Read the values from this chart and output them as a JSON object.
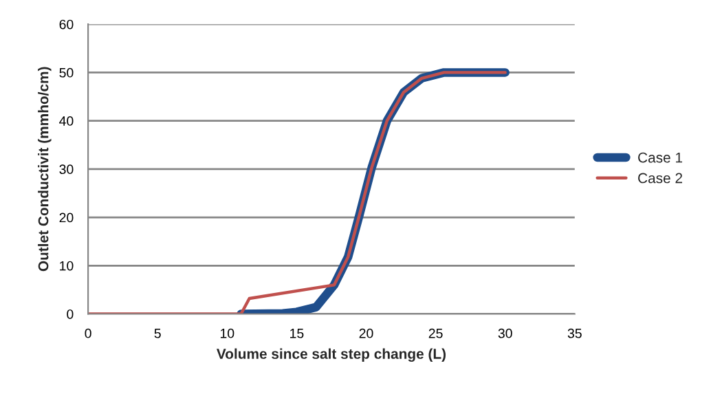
{
  "chart_data": {
    "type": "line",
    "xlabel": "Volume since salt step change (L)",
    "ylabel": "Outlet Conductivit (mmho/cm)",
    "xlim": [
      0,
      35
    ],
    "xticks": [
      0,
      5,
      10,
      15,
      20,
      25,
      30,
      35
    ],
    "ylim": [
      0,
      60
    ],
    "yticks": [
      0,
      10,
      20,
      30,
      40,
      50,
      60
    ],
    "grid": "y",
    "legend": "right",
    "marker": "none",
    "line_style": "solid",
    "series": [
      {
        "name": "Case 1",
        "color": "#1f4e8c",
        "x": [
          11.0,
          14.0,
          15.0,
          16.4,
          17.7,
          18.7,
          19.5,
          20.4,
          21.5,
          22.7,
          24.0,
          25.6,
          30.0
        ],
        "values": [
          0,
          0.1,
          0.4,
          1.4,
          6.0,
          11.8,
          20.3,
          30.3,
          40.0,
          45.9,
          48.8,
          50.0,
          50.0
        ]
      },
      {
        "name": "Case 2",
        "color": "#c0504d",
        "x": [
          0,
          11.0,
          11.6,
          17.7,
          18.7,
          19.5,
          20.4,
          21.5,
          22.7,
          24.0,
          25.6,
          30.0
        ],
        "values": [
          0,
          0,
          3.2,
          6.0,
          11.8,
          20.3,
          30.3,
          40.0,
          45.9,
          48.8,
          50.0,
          50.0
        ]
      }
    ]
  }
}
